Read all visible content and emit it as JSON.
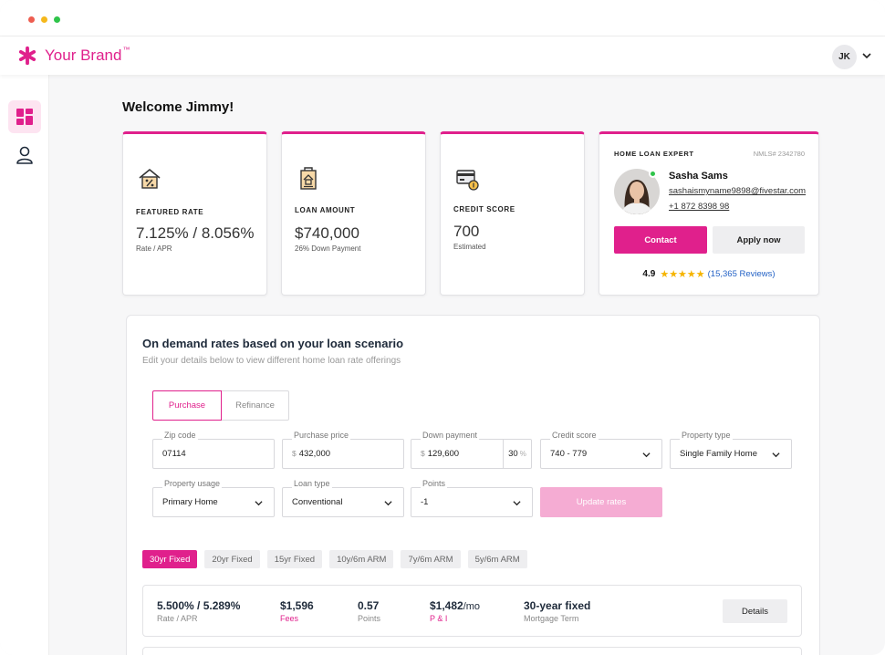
{
  "brand": {
    "name": "Your Brand",
    "tm": "™",
    "color": "#e0208c"
  },
  "user": {
    "initials": "JK"
  },
  "welcome": "Welcome Jimmy!",
  "cards": [
    {
      "icon": "house-percent-icon",
      "label": "FEATURED RATE",
      "value": "7.125% / 8.056%",
      "sub": "Rate / APR"
    },
    {
      "icon": "loan-document-icon",
      "label": "LOAN AMOUNT",
      "value": "$740,000",
      "sub": "26% Down Payment"
    },
    {
      "icon": "credit-card-icon",
      "label": "CREDIT SCORE",
      "value": "700",
      "sub": "Estimated"
    }
  ],
  "expert": {
    "label": "HOME LOAN EXPERT",
    "nmls": "NMLS# 2342780",
    "name": "Sasha Sams",
    "email": "sashaismyname9898@fivestar.com",
    "phone": "+1 872 8398 98",
    "contact_label": "Contact",
    "apply_label": "Apply now",
    "rating": "4.9",
    "stars": 5,
    "reviews": "(15,365 Reviews)"
  },
  "rates_panel": {
    "title": "On demand rates based on your loan scenario",
    "subtitle": "Edit your details below to view different home loan rate offerings",
    "toggle": {
      "purchase": "Purchase",
      "refinance": "Refinance",
      "selected": "Purchase"
    },
    "fields": {
      "zip": {
        "label": "Zip code",
        "value": "07114"
      },
      "price": {
        "label": "Purchase price",
        "prefix": "$",
        "value": "432,000"
      },
      "down": {
        "label": "Down payment",
        "prefix": "$",
        "value": "129,600",
        "percent": "30",
        "unit": "%"
      },
      "credit": {
        "label": "Credit score",
        "value": "740 - 779"
      },
      "property_type": {
        "label": "Property type",
        "value": "Single Family Home"
      },
      "usage": {
        "label": "Property usage",
        "value": "Primary Home"
      },
      "loan_type": {
        "label": "Loan type",
        "value": "Conventional"
      },
      "points": {
        "label": "Points",
        "value": "-1"
      }
    },
    "update_label": "Update rates",
    "terms": [
      "30yr Fixed",
      "20yr Fixed",
      "15yr Fixed",
      "10y/6m ARM",
      "7y/6m ARM",
      "5y/6m ARM"
    ],
    "selected_term": "30yr Fixed",
    "offer": {
      "rate": "5.500% / 5.289%",
      "rate_label": "Rate / APR",
      "fees": "$1,596",
      "fees_label": "Fees",
      "points": "0.57",
      "points_label": "Points",
      "payment": "$1,482",
      "payment_unit": "/mo",
      "payment_label": "P & I",
      "term": "30-year fixed",
      "term_label": "Mortgage Term",
      "details_label": "Details"
    }
  }
}
